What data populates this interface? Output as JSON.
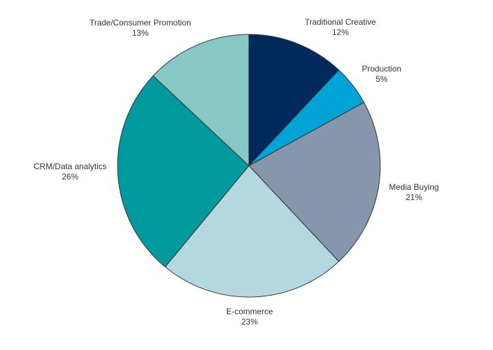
{
  "chart_data": {
    "type": "pie",
    "title": "",
    "start_angle_deg": 0,
    "direction": "clockwise",
    "slices": [
      {
        "label": "Traditional Creative",
        "value": 12,
        "value_text": "12%",
        "color": "#002a5c"
      },
      {
        "label": "Production",
        "value": 5,
        "value_text": "5%",
        "color": "#00a3d6"
      },
      {
        "label": "Media Buying",
        "value": 21,
        "value_text": "21%",
        "color": "#8596ad"
      },
      {
        "label": "E-commerce",
        "value": 23,
        "value_text": "23%",
        "color": "#b5d8e0"
      },
      {
        "label": "CRM/Data analytics",
        "value": 26,
        "value_text": "26%",
        "color": "#009a9e"
      },
      {
        "label": "Trade/Consumer Promotion",
        "value": 13,
        "value_text": "13%",
        "color": "#87c8c6"
      }
    ],
    "edge_color": "#333333",
    "legend": "none"
  }
}
